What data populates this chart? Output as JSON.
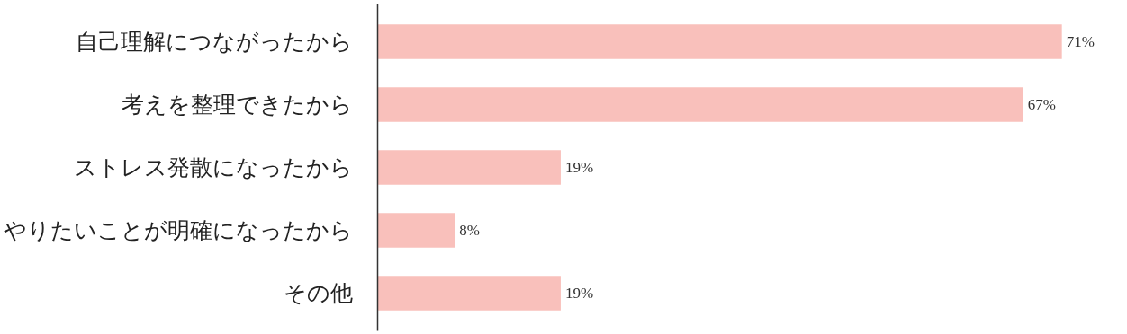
{
  "chart_data": {
    "type": "bar",
    "orientation": "horizontal",
    "categories": [
      "自己理解につながったから",
      "考えを整理できたから",
      "ストレス発散になったから",
      "やりたいことが明確になったから",
      "その他"
    ],
    "values": [
      71,
      67,
      19,
      8,
      19
    ],
    "value_labels": [
      "71%",
      "67%",
      "19%",
      "8%",
      "19%"
    ],
    "color": "#f9c0bb",
    "grid": false
  }
}
